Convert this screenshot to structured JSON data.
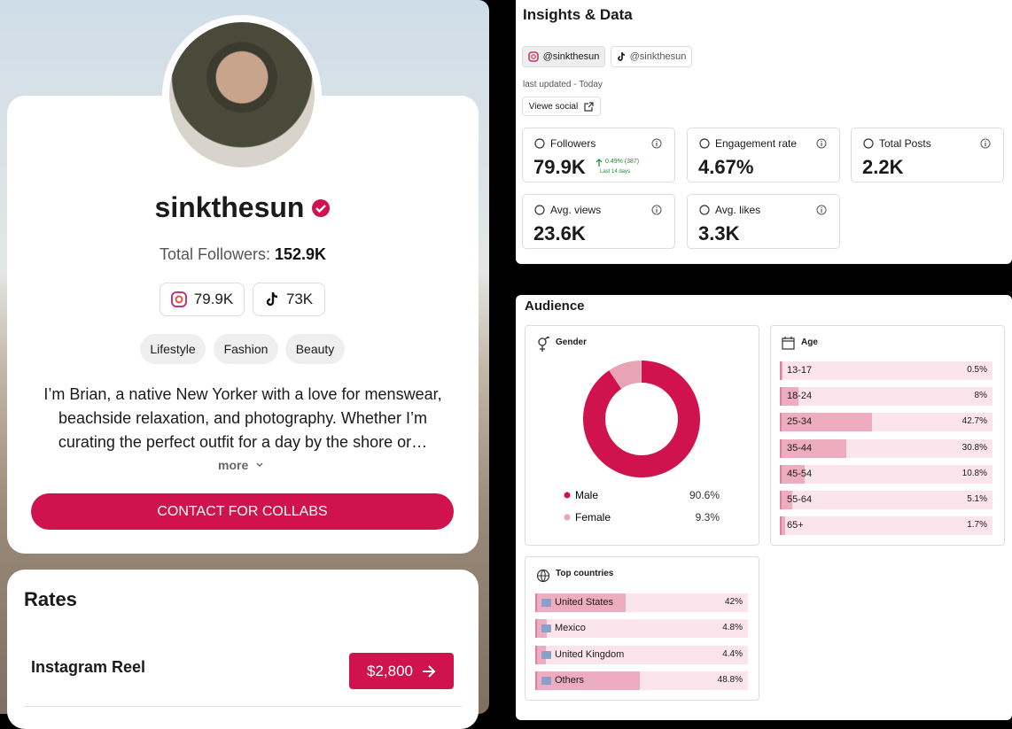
{
  "profile": {
    "username": "sinkthesun",
    "followers_label": "Total Followers:",
    "followers_total": "152.9K",
    "platform_followers": {
      "instagram": "79.9K",
      "tiktok": "73K"
    },
    "tags": [
      "Lifestyle",
      "Fashion",
      "Beauty"
    ],
    "bio": [
      "I’m Brian, a native New Yorker with a love for menswear,",
      "beachside relaxation, and photography. Whether I’m",
      "curating the perfect outfit for a day by the shore or…"
    ],
    "more": "more",
    "cta": "CONTACT FOR COLLABS"
  },
  "rates": {
    "title": "Rates",
    "items": [
      {
        "name": "Instagram Reel",
        "price": "$2,800"
      }
    ]
  },
  "insights": {
    "title": "Insights & Data",
    "tabs": [
      "@sinkthesun",
      "@sinkthesun"
    ],
    "updated": "last updated - Today",
    "view_button": "Viewe social",
    "stats": [
      {
        "label": "Followers",
        "value": "79.9K",
        "change": "0.49% (387)",
        "period": "Last 14 days"
      },
      {
        "label": "Engagement rate",
        "value": "4.67%"
      },
      {
        "label": "Total Posts",
        "value": "2.2K"
      },
      {
        "label": "Avg. views",
        "value": "23.6K"
      },
      {
        "label": "Avg. likes",
        "value": "3.3K"
      }
    ]
  },
  "audience": {
    "title": "Audience",
    "gender": {
      "title": "Gender",
      "items": [
        {
          "label": "Male",
          "value": 90.6,
          "value_label": "90.6%",
          "color": "#d0124f"
        },
        {
          "label": "Female",
          "value": 9.3,
          "value_label": "9.3%",
          "color": "#e9a3b7"
        }
      ]
    },
    "age": {
      "title": "Age",
      "items": [
        {
          "label": "13-17",
          "value": 0.5,
          "value_label": "0.5%"
        },
        {
          "label": "18-24",
          "value": 8,
          "value_label": "8%"
        },
        {
          "label": "25-34",
          "value": 42.7,
          "value_label": "42.7%"
        },
        {
          "label": "35-44",
          "value": 30.8,
          "value_label": "30.8%"
        },
        {
          "label": "45-54",
          "value": 10.8,
          "value_label": "10.8%"
        },
        {
          "label": "55-64",
          "value": 5.1,
          "value_label": "5.1%"
        },
        {
          "label": "65+",
          "value": 1.7,
          "value_label": "1.7%"
        }
      ]
    },
    "countries": {
      "title": "Top countries",
      "items": [
        {
          "label": "United States",
          "value": 42,
          "value_label": "42%"
        },
        {
          "label": "Mexico",
          "value": 4.8,
          "value_label": "4.8%"
        },
        {
          "label": "United Kingdom",
          "value": 4.4,
          "value_label": "4.4%"
        },
        {
          "label": "Others",
          "value": 48.8,
          "value_label": "48.8%"
        }
      ]
    }
  }
}
